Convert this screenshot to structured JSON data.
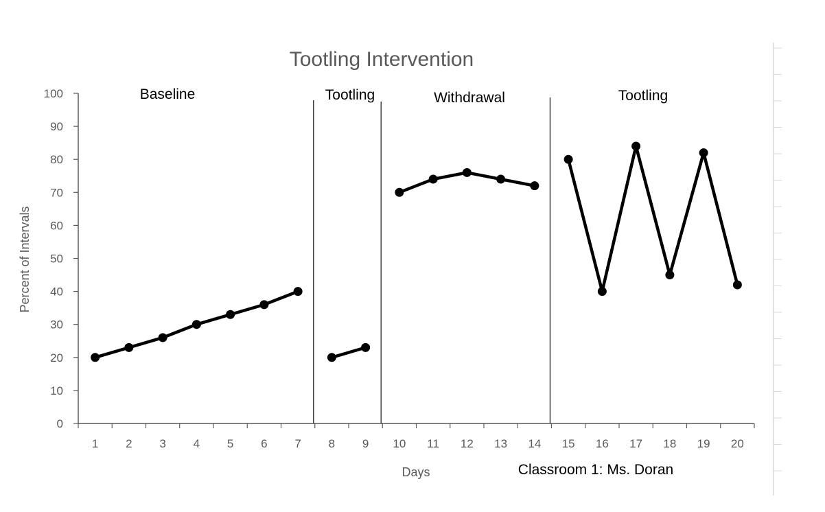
{
  "chart_data": {
    "type": "line",
    "title": "Tootling Intervention",
    "xlabel": "Days",
    "ylabel": "Percent of Intervals",
    "caption": "Classroom 1: Ms. Doran",
    "ylim": [
      0,
      100
    ],
    "yticks": [
      0,
      10,
      20,
      30,
      40,
      50,
      60,
      70,
      80,
      90,
      100
    ],
    "xlim": [
      0.5,
      20.5
    ],
    "xticks": [
      1,
      2,
      3,
      4,
      5,
      6,
      7,
      8,
      9,
      10,
      11,
      12,
      13,
      14,
      15,
      16,
      17,
      18,
      19,
      20
    ],
    "phase_boundaries": [
      7.5,
      9.5,
      14.5
    ],
    "phases": [
      {
        "name": "Baseline",
        "x": [
          1,
          2,
          3,
          4,
          5,
          6,
          7
        ],
        "values": [
          20,
          23,
          26,
          30,
          33,
          36,
          40
        ]
      },
      {
        "name": "Tootling",
        "x": [
          8,
          9
        ],
        "values": [
          20,
          23
        ]
      },
      {
        "name": "Withdrawal",
        "x": [
          10,
          11,
          12,
          13,
          14
        ],
        "values": [
          70,
          74,
          76,
          74,
          72
        ]
      },
      {
        "name": "Tootling",
        "x": [
          15,
          16,
          17,
          18,
          19,
          20
        ],
        "values": [
          80,
          40,
          84,
          45,
          82,
          42
        ]
      }
    ],
    "colors": {
      "line": "#000000",
      "axis": "#595959",
      "divider": "#404040",
      "text": "#595959"
    }
  }
}
